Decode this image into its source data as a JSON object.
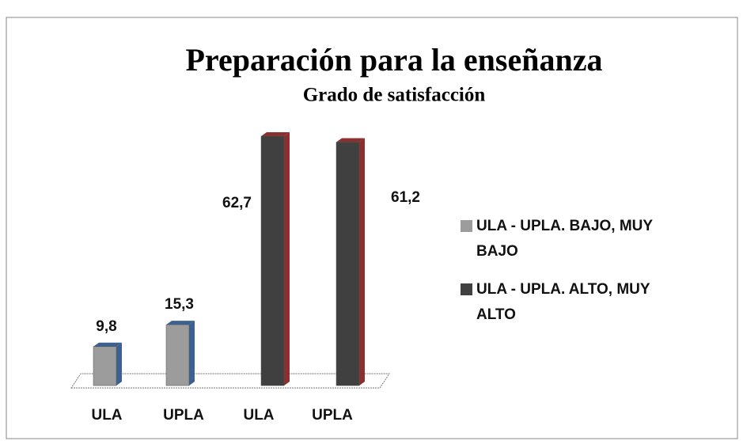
{
  "chart_data": {
    "type": "bar3d",
    "title": "Preparación para la enseñanza",
    "subtitle": "Grado de satisfacción",
    "categories": [
      "ULA",
      "UPLA",
      "ULA",
      "UPLA"
    ],
    "series": [
      {
        "name": "ULA - UPLA. BAJO, MUY BAJO",
        "color": "#9c9c9c",
        "edge_color": "#3c6191",
        "values": [
          9.8,
          15.3,
          null,
          null
        ],
        "value_labels": [
          "9,8",
          "15,3",
          null,
          null
        ]
      },
      {
        "name": "ULA - UPLA. ALTO, MUY ALTO",
        "color": "#404040",
        "edge_color": "#8c2f2f",
        "values": [
          null,
          null,
          62.7,
          61.2
        ],
        "value_labels": [
          null,
          null,
          "62,7",
          "61,2"
        ]
      }
    ],
    "legend": "right"
  }
}
